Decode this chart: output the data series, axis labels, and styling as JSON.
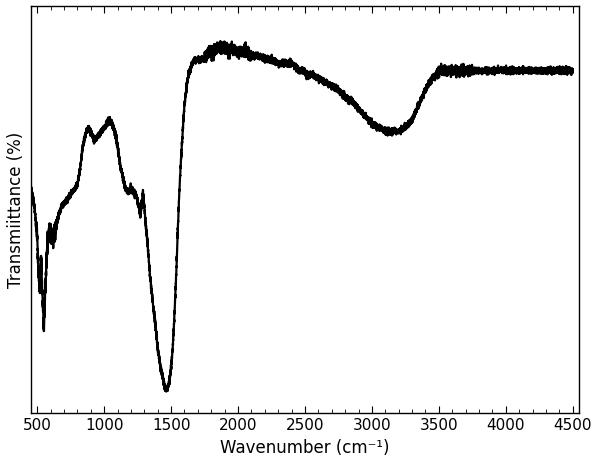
{
  "xlabel": "Wavenumber (cm⁻¹)",
  "ylabel": "Transmiittance (%)",
  "xlim": [
    450,
    4550
  ],
  "xticks": [
    500,
    1000,
    1500,
    2000,
    2500,
    3000,
    3500,
    4000,
    4500
  ],
  "line_color": "#000000",
  "line_width": 1.6,
  "bg_color": "#ffffff",
  "label_fontsize": 12,
  "tick_fontsize": 11,
  "keypoints": [
    [
      450,
      0.58
    ],
    [
      480,
      0.52
    ],
    [
      500,
      0.44
    ],
    [
      510,
      0.36
    ],
    [
      520,
      0.3
    ],
    [
      530,
      0.38
    ],
    [
      540,
      0.28
    ],
    [
      550,
      0.2
    ],
    [
      560,
      0.3
    ],
    [
      570,
      0.38
    ],
    [
      580,
      0.44
    ],
    [
      600,
      0.46
    ],
    [
      620,
      0.44
    ],
    [
      640,
      0.47
    ],
    [
      660,
      0.5
    ],
    [
      680,
      0.52
    ],
    [
      700,
      0.53
    ],
    [
      720,
      0.54
    ],
    [
      740,
      0.55
    ],
    [
      760,
      0.56
    ],
    [
      780,
      0.57
    ],
    [
      800,
      0.58
    ],
    [
      820,
      0.62
    ],
    [
      840,
      0.68
    ],
    [
      860,
      0.71
    ],
    [
      880,
      0.73
    ],
    [
      900,
      0.72
    ],
    [
      920,
      0.7
    ],
    [
      940,
      0.7
    ],
    [
      960,
      0.71
    ],
    [
      980,
      0.72
    ],
    [
      1000,
      0.73
    ],
    [
      1020,
      0.74
    ],
    [
      1040,
      0.75
    ],
    [
      1060,
      0.74
    ],
    [
      1080,
      0.72
    ],
    [
      1100,
      0.68
    ],
    [
      1120,
      0.63
    ],
    [
      1140,
      0.6
    ],
    [
      1160,
      0.57
    ],
    [
      1180,
      0.56
    ],
    [
      1200,
      0.57
    ],
    [
      1220,
      0.56
    ],
    [
      1240,
      0.55
    ],
    [
      1260,
      0.52
    ],
    [
      1270,
      0.5
    ],
    [
      1280,
      0.53
    ],
    [
      1290,
      0.56
    ],
    [
      1300,
      0.52
    ],
    [
      1310,
      0.48
    ],
    [
      1320,
      0.44
    ],
    [
      1330,
      0.4
    ],
    [
      1340,
      0.35
    ],
    [
      1360,
      0.28
    ],
    [
      1380,
      0.22
    ],
    [
      1400,
      0.15
    ],
    [
      1420,
      0.1
    ],
    [
      1440,
      0.07
    ],
    [
      1450,
      0.05
    ],
    [
      1460,
      0.04
    ],
    [
      1470,
      0.04
    ],
    [
      1480,
      0.05
    ],
    [
      1490,
      0.07
    ],
    [
      1500,
      0.1
    ],
    [
      1510,
      0.14
    ],
    [
      1520,
      0.2
    ],
    [
      1530,
      0.28
    ],
    [
      1540,
      0.36
    ],
    [
      1550,
      0.46
    ],
    [
      1560,
      0.55
    ],
    [
      1570,
      0.62
    ],
    [
      1580,
      0.68
    ],
    [
      1590,
      0.74
    ],
    [
      1600,
      0.79
    ],
    [
      1610,
      0.82
    ],
    [
      1620,
      0.85
    ],
    [
      1630,
      0.87
    ],
    [
      1640,
      0.88
    ],
    [
      1650,
      0.89
    ],
    [
      1660,
      0.9
    ],
    [
      1680,
      0.91
    ],
    [
      1700,
      0.91
    ],
    [
      1720,
      0.91
    ],
    [
      1740,
      0.91
    ],
    [
      1750,
      0.91
    ],
    [
      1760,
      0.92
    ],
    [
      1780,
      0.93
    ],
    [
      1800,
      0.93
    ],
    [
      1820,
      0.93
    ],
    [
      1840,
      0.94
    ],
    [
      1860,
      0.94
    ],
    [
      1880,
      0.94
    ],
    [
      1900,
      0.94
    ],
    [
      1920,
      0.94
    ],
    [
      1940,
      0.93
    ],
    [
      1960,
      0.94
    ],
    [
      1980,
      0.93
    ],
    [
      2000,
      0.93
    ],
    [
      2050,
      0.93
    ],
    [
      2100,
      0.92
    ],
    [
      2150,
      0.92
    ],
    [
      2200,
      0.91
    ],
    [
      2250,
      0.91
    ],
    [
      2300,
      0.9
    ],
    [
      2350,
      0.9
    ],
    [
      2400,
      0.9
    ],
    [
      2430,
      0.89
    ],
    [
      2450,
      0.88
    ],
    [
      2470,
      0.88
    ],
    [
      2490,
      0.88
    ],
    [
      2510,
      0.87
    ],
    [
      2550,
      0.87
    ],
    [
      2600,
      0.86
    ],
    [
      2650,
      0.85
    ],
    [
      2700,
      0.84
    ],
    [
      2750,
      0.83
    ],
    [
      2800,
      0.81
    ],
    [
      2850,
      0.8
    ],
    [
      2900,
      0.78
    ],
    [
      2950,
      0.76
    ],
    [
      3000,
      0.74
    ],
    [
      3050,
      0.73
    ],
    [
      3100,
      0.72
    ],
    [
      3150,
      0.72
    ],
    [
      3200,
      0.72
    ],
    [
      3250,
      0.73
    ],
    [
      3300,
      0.75
    ],
    [
      3350,
      0.79
    ],
    [
      3400,
      0.83
    ],
    [
      3450,
      0.86
    ],
    [
      3480,
      0.87
    ],
    [
      3500,
      0.88
    ],
    [
      3520,
      0.88
    ],
    [
      3550,
      0.88
    ],
    [
      3600,
      0.88
    ],
    [
      3650,
      0.88
    ],
    [
      3700,
      0.88
    ],
    [
      3750,
      0.88
    ],
    [
      3800,
      0.88
    ],
    [
      3850,
      0.88
    ],
    [
      3900,
      0.88
    ],
    [
      3950,
      0.88
    ],
    [
      4000,
      0.88
    ],
    [
      4100,
      0.88
    ],
    [
      4200,
      0.88
    ],
    [
      4300,
      0.88
    ],
    [
      4400,
      0.88
    ],
    [
      4500,
      0.88
    ]
  ]
}
